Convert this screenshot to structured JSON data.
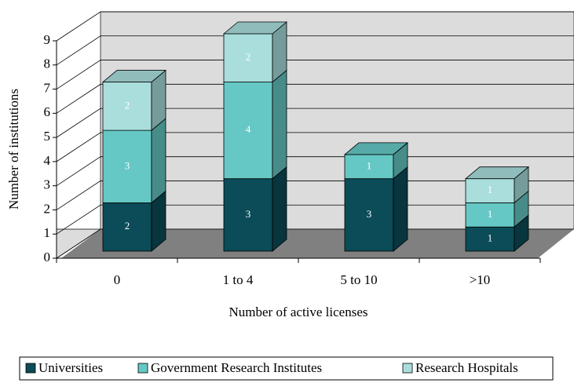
{
  "chart_data": {
    "type": "bar3d_stacked",
    "xlabel": "Number of active licenses",
    "ylabel": "Number of institutions",
    "categories": [
      "0",
      "1 to 4",
      "5 to 10",
      ">10"
    ],
    "series": [
      {
        "name": "Universities",
        "color": "#0b4c58",
        "values": [
          2,
          3,
          3,
          1
        ]
      },
      {
        "name": "Government Research Institutes",
        "color": "#66c8c4",
        "values": [
          3,
          4,
          1,
          1
        ]
      },
      {
        "name": "Research Hospitals",
        "color": "#a9dedd",
        "values": [
          2,
          2,
          0,
          1
        ]
      }
    ],
    "ylim": [
      0,
      9
    ],
    "yticks": [
      0,
      1,
      2,
      3,
      4,
      5,
      6,
      7,
      8,
      9
    ],
    "grid": true,
    "legend": "bottom"
  }
}
